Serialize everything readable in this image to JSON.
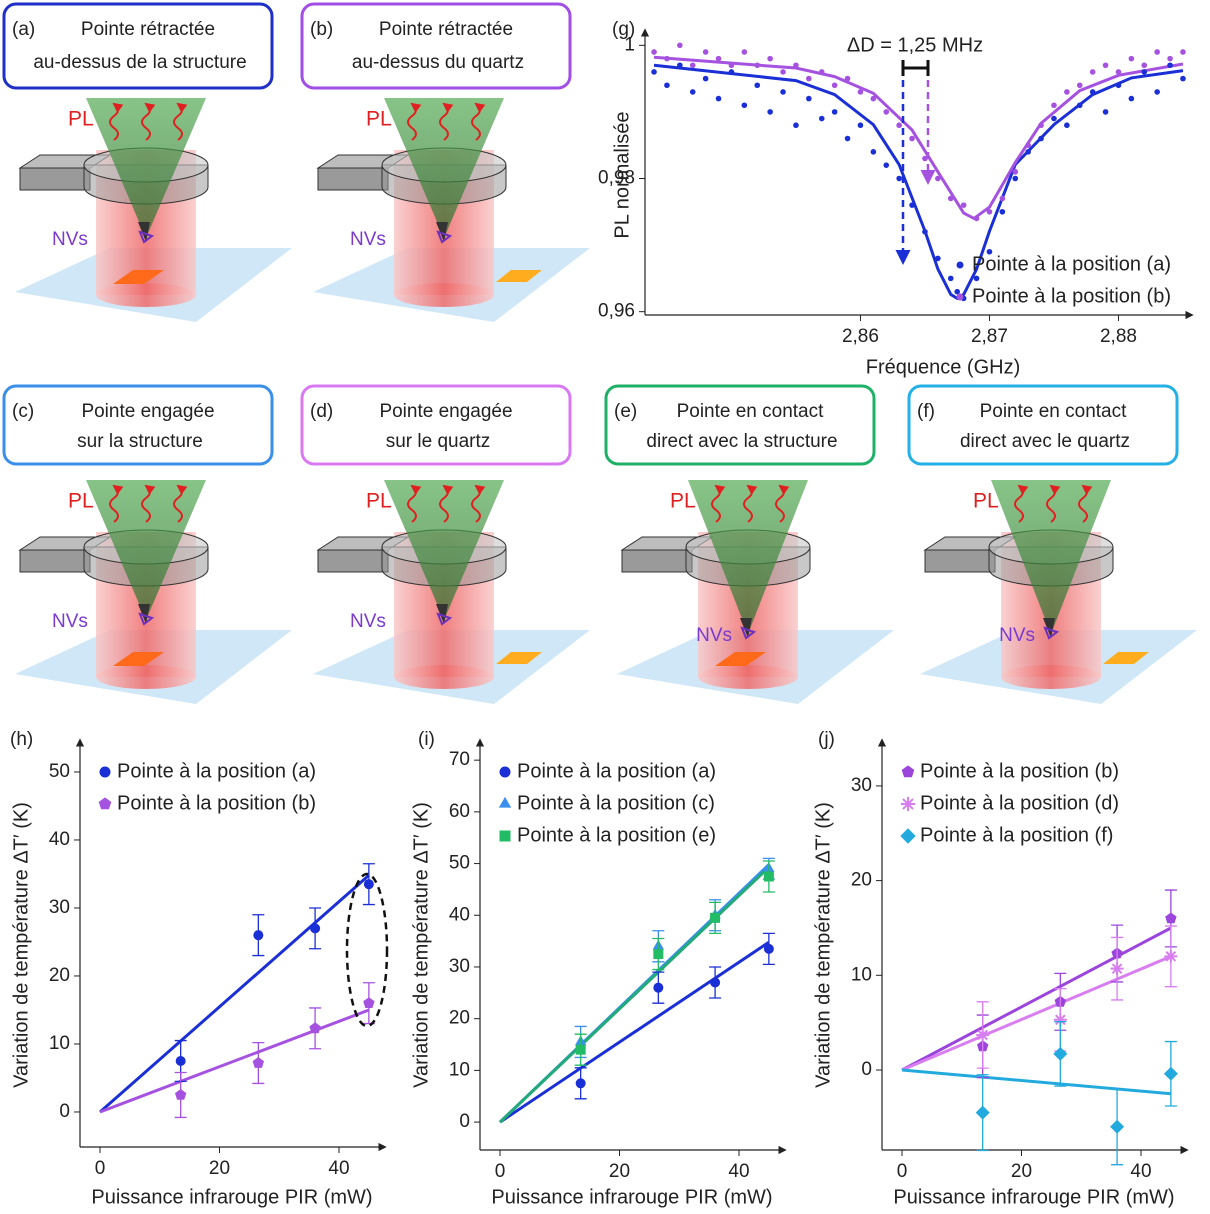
{
  "diagrams": [
    {
      "tag": "(a)",
      "lines": [
        "Pointe rétractée",
        "au-dessus de la structure"
      ],
      "color": "#1f2fc8",
      "pl": "PL",
      "nvs": "NVs"
    },
    {
      "tag": "(b)",
      "lines": [
        "Pointe rétractée",
        "au-dessus du quartz"
      ],
      "color": "#a04ee6",
      "pl": "PL",
      "nvs": "NVs"
    },
    {
      "tag": "(c)",
      "lines": [
        "Pointe engagée",
        "sur la structure"
      ],
      "color": "#3a8fe8",
      "pl": "PL",
      "nvs": "NVs"
    },
    {
      "tag": "(d)",
      "lines": [
        "Pointe engagée",
        "sur le quartz"
      ],
      "color": "#d878f2",
      "pl": "PL",
      "nvs": "NVs"
    },
    {
      "tag": "(e)",
      "lines": [
        "Pointe en contact",
        "direct avec la structure"
      ],
      "color": "#1fb068",
      "pl": "PL",
      "nvs": "NVs"
    },
    {
      "tag": "(f)",
      "lines": [
        "Pointe en contact",
        "direct avec le quartz"
      ],
      "color": "#22b0e6",
      "pl": "PL",
      "nvs": "NVs"
    }
  ],
  "chart_data": [
    {
      "type": "scatter",
      "label": "(g)",
      "xlabel": "Fréquence (GHz)",
      "ylabel": "PL normalisée",
      "annotation": "ΔD = 1,25 MHz",
      "xlim": [
        2.8433,
        2.8857
      ],
      "ylim": [
        0.9595,
        1.0023
      ],
      "xticks": [
        {
          "value": 2.86,
          "label": "2,86"
        },
        {
          "value": 2.87,
          "label": "2,87"
        },
        {
          "value": 2.88,
          "label": "2,88"
        }
      ],
      "yticks": [
        {
          "value": 0.96,
          "label": "0,96"
        },
        {
          "value": 0.98,
          "label": "0,98"
        },
        1
      ],
      "legend": "lower right",
      "series": [
        {
          "name": "Pointe à la position (a)",
          "color": "#1a2fd6",
          "marker": "circle",
          "x": [
            2.844,
            2.845,
            2.846,
            2.847,
            2.848,
            2.849,
            2.85,
            2.851,
            2.852,
            2.853,
            2.854,
            2.855,
            2.856,
            2.857,
            2.858,
            2.859,
            2.86,
            2.861,
            2.862,
            2.863,
            2.864,
            2.865,
            2.866,
            2.867,
            2.8675,
            2.868,
            2.869,
            2.87,
            2.871,
            2.872,
            2.873,
            2.874,
            2.875,
            2.876,
            2.877,
            2.878,
            2.879,
            2.88,
            2.881,
            2.882,
            2.883,
            2.884,
            2.885
          ],
          "values": [
            0.996,
            0.994,
            0.997,
            0.993,
            0.995,
            0.992,
            0.996,
            0.991,
            0.994,
            0.99,
            0.993,
            0.988,
            0.992,
            0.989,
            0.99,
            0.986,
            0.988,
            0.984,
            0.982,
            0.98,
            0.976,
            0.972,
            0.968,
            0.965,
            0.963,
            0.962,
            0.965,
            0.969,
            0.975,
            0.98,
            0.984,
            0.986,
            0.989,
            0.988,
            0.991,
            0.993,
            0.99,
            0.994,
            0.992,
            0.996,
            0.993,
            0.997,
            0.995
          ]
        },
        {
          "name": "Pointe à la position (b)",
          "color": "#a652e0",
          "marker": "circle",
          "x": [
            2.844,
            2.845,
            2.846,
            2.847,
            2.848,
            2.849,
            2.85,
            2.851,
            2.852,
            2.853,
            2.854,
            2.855,
            2.856,
            2.857,
            2.858,
            2.859,
            2.86,
            2.861,
            2.862,
            2.863,
            2.864,
            2.865,
            2.866,
            2.867,
            2.868,
            2.869,
            2.87,
            2.871,
            2.872,
            2.873,
            2.874,
            2.875,
            2.876,
            2.877,
            2.878,
            2.879,
            2.88,
            2.881,
            2.882,
            2.883,
            2.884,
            2.885
          ],
          "values": [
            0.999,
            0.998,
            1.0,
            0.997,
            0.999,
            0.998,
            0.997,
            0.999,
            0.997,
            0.998,
            0.996,
            0.997,
            0.995,
            0.996,
            0.994,
            0.995,
            0.993,
            0.992,
            0.99,
            0.988,
            0.986,
            0.983,
            0.98,
            0.977,
            0.976,
            0.974,
            0.975,
            0.977,
            0.981,
            0.985,
            0.988,
            0.991,
            0.993,
            0.994,
            0.996,
            0.997,
            0.996,
            0.998,
            0.997,
            0.999,
            0.998,
            0.999
          ]
        }
      ],
      "fit_lines": [
        {
          "color": "#1a2fd6",
          "x": [
            2.844,
            2.855,
            2.858,
            2.861,
            2.863,
            2.865,
            2.866,
            2.867,
            2.8675,
            2.868,
            2.869,
            2.87,
            2.872,
            2.875,
            2.878,
            2.881,
            2.885
          ],
          "values": [
            0.997,
            0.9947,
            0.9926,
            0.9881,
            0.9821,
            0.9721,
            0.9664,
            0.9626,
            0.962,
            0.9626,
            0.9664,
            0.9721,
            0.9821,
            0.9881,
            0.9926,
            0.9951,
            0.9962
          ]
        },
        {
          "color": "#a652e0",
          "x": [
            2.844,
            2.855,
            2.858,
            2.861,
            2.864,
            2.866,
            2.868,
            2.8688,
            2.87,
            2.872,
            2.874,
            2.877,
            2.88,
            2.885
          ],
          "values": [
            0.9982,
            0.9966,
            0.9953,
            0.9928,
            0.9873,
            0.981,
            0.9748,
            0.974,
            0.9757,
            0.9824,
            0.9883,
            0.9932,
            0.9955,
            0.9972
          ]
        }
      ]
    },
    {
      "type": "scatter",
      "label": "(h)",
      "xlabel": "Puissance infrarouge PIR (mW)",
      "ylabel": "Variation de température ΔT′ (K)",
      "xlim": [
        -3.35,
        47.7
      ],
      "ylim": [
        -5.15,
        54.7
      ],
      "xticks": [
        0,
        20,
        40
      ],
      "yticks": [
        0,
        10,
        20,
        30,
        40,
        50
      ],
      "legend": "upper left",
      "series": [
        {
          "name": "Pointe à la position (a)",
          "color": "#1a2fd6",
          "marker": "circle",
          "x": [
            13.5,
            26.5,
            36,
            45
          ],
          "values": [
            7.5,
            26,
            27,
            33.5
          ],
          "errors": [
            3,
            3,
            3,
            3
          ]
        },
        {
          "name": "Pointe à la position (b)",
          "color": "#a652e0",
          "marker": "pentagon",
          "x": [
            13.5,
            26.5,
            36,
            45
          ],
          "values": [
            2.5,
            7.2,
            12.3,
            16
          ],
          "errors": [
            3.3,
            3,
            3,
            3
          ]
        }
      ],
      "fit_lines": [
        {
          "color": "#1a2fd6",
          "x": [
            0,
            45
          ],
          "values": [
            0,
            34.8
          ]
        },
        {
          "color": "#a652e0",
          "x": [
            0,
            45
          ],
          "values": [
            0,
            15
          ]
        }
      ]
    },
    {
      "type": "scatter",
      "label": "(i)",
      "xlabel": "Puissance infrarouge PIR (mW)",
      "ylabel": "Variation de température ΔT′ (K)",
      "xlim": [
        -3.35,
        47.7
      ],
      "ylim": [
        -5.4,
        73.9
      ],
      "xticks": [
        0,
        20,
        40
      ],
      "yticks": [
        0,
        10,
        20,
        30,
        40,
        50,
        60,
        70
      ],
      "legend": "upper left",
      "series": [
        {
          "name": "Pointe à la position (a)",
          "color": "#1a2fd6",
          "marker": "circle",
          "x": [
            13.5,
            26.5,
            36,
            45
          ],
          "values": [
            7.5,
            26,
            27,
            33.5
          ],
          "errors": [
            3,
            3,
            3,
            3
          ]
        },
        {
          "name": "Pointe à la position (c)",
          "color": "#3a8ff0",
          "marker": "triangle",
          "x": [
            13.5,
            26.5,
            36,
            45
          ],
          "values": [
            15.5,
            34,
            40,
            49
          ],
          "errors": [
            3,
            3,
            3,
            2
          ]
        },
        {
          "name": "Pointe à la position (e)",
          "color": "#22bb66",
          "marker": "square",
          "x": [
            13.5,
            26.5,
            36,
            45
          ],
          "values": [
            14,
            32.5,
            39.5,
            47.5
          ],
          "errors": [
            3,
            3,
            3,
            3
          ]
        }
      ],
      "fit_lines": [
        {
          "color": "#1a2fd6",
          "x": [
            0,
            45
          ],
          "values": [
            0,
            34.8
          ]
        },
        {
          "color": "#3a8ff0",
          "x": [
            0,
            45
          ],
          "values": [
            0,
            49.8
          ]
        },
        {
          "color": "#22aa77",
          "x": [
            0,
            45
          ],
          "values": [
            0,
            49.3
          ]
        }
      ]
    },
    {
      "type": "scatter",
      "label": "(j)",
      "xlabel": "Puissance infrarouge PIR (mW)",
      "ylabel": "Variation de température ΔT′ (K)",
      "xlim": [
        -3.35,
        47.7
      ],
      "ylim": [
        -8.45,
        34.85
      ],
      "xticks": [
        0,
        20,
        40
      ],
      "yticks": [
        0,
        10,
        20,
        30
      ],
      "legend": "upper left",
      "series": [
        {
          "name": "Pointe à la position (b)",
          "color": "#9b45dd",
          "marker": "pentagon",
          "x": [
            13.5,
            26.5,
            36,
            45
          ],
          "values": [
            2.5,
            7.2,
            12.3,
            16
          ],
          "errors": [
            3.3,
            3,
            3,
            3
          ]
        },
        {
          "name": "Pointe à la position (d)",
          "color": "#d97ef0",
          "marker": "asterisk",
          "x": [
            13.5,
            26.5,
            36,
            45
          ],
          "values": [
            3.7,
            5.3,
            10.7,
            12
          ],
          "errors": [
            3.5,
            3.3,
            3.3,
            3.2
          ]
        },
        {
          "name": "Pointe à la position (f)",
          "color": "#22aadf",
          "marker": "diamond",
          "x": [
            13.5,
            26.5,
            36,
            45
          ],
          "values": [
            -4.5,
            1.7,
            -6,
            -0.4
          ],
          "errors": [
            4,
            3.4,
            4,
            3.4
          ]
        }
      ],
      "fit_lines": [
        {
          "color": "#9b45dd",
          "x": [
            0,
            45
          ],
          "values": [
            0,
            15
          ]
        },
        {
          "color": "#d97ef0",
          "x": [
            0,
            45
          ],
          "values": [
            0,
            12
          ]
        },
        {
          "color": "#22aadf",
          "x": [
            0,
            45
          ],
          "values": [
            0,
            -2.5
          ]
        }
      ]
    }
  ]
}
